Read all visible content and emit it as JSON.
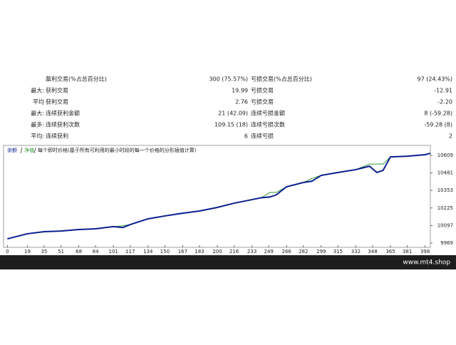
{
  "stats": {
    "rows": [
      {
        "label": "盈利交易(%占总百分比)",
        "value": "300 (75.57%)",
        "label2": "亏损交易(%占总百分比)",
        "value2": "97 (24.43%)"
      },
      {
        "prefix": "最大:",
        "label": "获利交易",
        "value": "19.99",
        "label2": "亏损交易",
        "value2": "-12.91"
      },
      {
        "prefix": "平均",
        "label": "获利交易",
        "value": "2.76",
        "label2": "亏损交易",
        "value2": "-2.20"
      },
      {
        "prefix": "最大:",
        "label": "连续获利金额",
        "value": "21 (42.09)",
        "label2": "连续亏损金额",
        "value2": "8 (-59.28)"
      },
      {
        "prefix": "最多:",
        "label": "连续获利次数",
        "value": "109.15 (18)",
        "label2": "连续亏损次数",
        "value2": "-59.28 (8)"
      },
      {
        "prefix": "平均:",
        "label": "连续获利",
        "value": "6",
        "label2": "连续亏损",
        "value2": "2"
      }
    ]
  },
  "chart_data": {
    "type": "line",
    "annotation": "每个即时价格(基于所有可利用的最小时段的每一个价格的分形插值计算)",
    "x": [
      0,
      19,
      35,
      51,
      68,
      84,
      101,
      110,
      117,
      134,
      150,
      167,
      183,
      200,
      216,
      233,
      242,
      250,
      256,
      266,
      282,
      290,
      299,
      315,
      332,
      345,
      352,
      358,
      365,
      381,
      398,
      403
    ],
    "series": [
      {
        "name": "余额",
        "color": "#0a1f8f",
        "values": [
          10000,
          10037,
          10052,
          10057,
          10068,
          10073,
          10089,
          10082,
          10104,
          10146,
          10167,
          10187,
          10203,
          10229,
          10260,
          10286,
          10300,
          10305,
          10320,
          10380,
          10411,
          10420,
          10463,
          10484,
          10505,
          10530,
          10484,
          10500,
          10598,
          10603,
          10614,
          10624
        ]
      },
      {
        "name": "净值",
        "color": "#2e9a2e",
        "values": [
          10000,
          10037,
          10052,
          10057,
          10068,
          10073,
          10089,
          10095,
          10104,
          10146,
          10167,
          10187,
          10203,
          10229,
          10260,
          10286,
          10300,
          10338,
          10338,
          10380,
          10411,
          10440,
          10463,
          10484,
          10505,
          10546,
          10546,
          10546,
          10598,
          10603,
          10614,
          10624
        ]
      }
    ],
    "xlim": [
      -3,
      403
    ],
    "ylim": [
      9943,
      10666
    ],
    "xticks": [
      0,
      19,
      35,
      51,
      68,
      84,
      101,
      117,
      134,
      150,
      167,
      183,
      200,
      216,
      233,
      249,
      266,
      282,
      299,
      315,
      332,
      348,
      365,
      381,
      398
    ],
    "yticks": [
      9969,
      10097,
      10225,
      10353,
      10481,
      10609
    ]
  },
  "footer": {
    "text": "www.mt4.shop"
  }
}
